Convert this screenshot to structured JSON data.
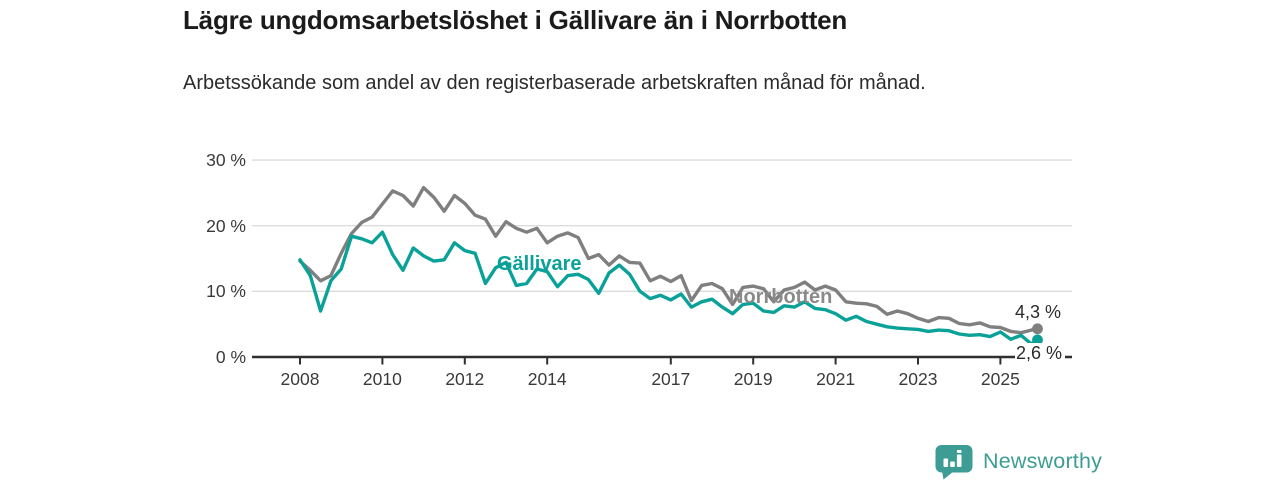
{
  "title": "Lägre ungdomsarbetslöshet i Gällivare än i Norrbotten",
  "subtitle": "Arbetssökande som andel av den registerbaserade arbetskraften månad för månad.",
  "branding": {
    "logo_text": "Newsworthy",
    "logo_icon": "newsworthy-bars-badge-icon",
    "logo_color": "#3d9d94"
  },
  "colors": {
    "axis": "#2f2f2f",
    "grid": "#dcdcdc",
    "tick_label": "#3a3a3a",
    "background": "#ffffff"
  },
  "chart_data": {
    "type": "line",
    "title": "Lägre ungdomsarbetslöshet i Gällivare än i Norrbotten",
    "subtitle": "Arbetssökande som andel av den registerbaserade arbetskraften månad för månad.",
    "xlabel": "",
    "ylabel": "",
    "grid": "horizontal",
    "legend_position": "inline-labels",
    "xlim": [
      2008,
      2026.7
    ],
    "ylim": [
      0,
      31
    ],
    "x_ticks": [
      2008,
      2010,
      2012,
      2014,
      2017,
      2019,
      2021,
      2023,
      2025
    ],
    "x_tick_labels": [
      "2008",
      "2010",
      "2012",
      "2014",
      "2017",
      "2019",
      "2021",
      "2023",
      "2025"
    ],
    "y_ticks": [
      0,
      10,
      20,
      30
    ],
    "y_tick_labels": [
      "0 %",
      "10 %",
      "20 %",
      "30 %"
    ],
    "x_unit": "decimal year (monthly data)",
    "y_unit": "percent of registered labour force",
    "x": [
      2008.0,
      2008.25,
      2008.5,
      2008.75,
      2009.0,
      2009.25,
      2009.5,
      2009.75,
      2010.0,
      2010.25,
      2010.5,
      2010.75,
      2011.0,
      2011.25,
      2011.5,
      2011.75,
      2012.0,
      2012.25,
      2012.5,
      2012.75,
      2013.0,
      2013.25,
      2013.5,
      2013.75,
      2014.0,
      2014.25,
      2014.5,
      2014.75,
      2015.0,
      2015.25,
      2015.5,
      2015.75,
      2016.0,
      2016.25,
      2016.5,
      2016.75,
      2017.0,
      2017.25,
      2017.5,
      2017.75,
      2018.0,
      2018.25,
      2018.5,
      2018.75,
      2019.0,
      2019.25,
      2019.5,
      2019.75,
      2020.0,
      2020.25,
      2020.5,
      2020.75,
      2021.0,
      2021.25,
      2021.5,
      2021.75,
      2022.0,
      2022.25,
      2022.5,
      2022.75,
      2023.0,
      2023.25,
      2023.5,
      2023.75,
      2024.0,
      2024.25,
      2024.5,
      2024.75,
      2025.0,
      2025.25,
      2025.5,
      2025.75,
      2025.9
    ],
    "series": [
      {
        "name": "Norrbotten",
        "color": "#7f7f7f",
        "end_label": "4,3 %",
        "end_value": 4.3,
        "values": [
          14.6,
          13.2,
          11.6,
          12.4,
          15.8,
          18.8,
          20.5,
          21.3,
          23.3,
          25.3,
          24.6,
          23.0,
          25.8,
          24.3,
          22.2,
          24.6,
          23.4,
          21.6,
          21.0,
          18.4,
          20.6,
          19.6,
          19.0,
          19.6,
          17.4,
          18.4,
          18.9,
          18.2,
          15.0,
          15.6,
          14.0,
          15.4,
          14.4,
          14.3,
          11.6,
          12.3,
          11.5,
          12.4,
          8.6,
          10.9,
          11.2,
          10.4,
          8.0,
          10.6,
          10.8,
          10.4,
          8.4,
          10.2,
          10.6,
          11.4,
          10.2,
          10.8,
          10.2,
          8.4,
          8.2,
          8.1,
          7.7,
          6.5,
          7.0,
          6.6,
          5.9,
          5.4,
          6.0,
          5.9,
          5.1,
          4.9,
          5.2,
          4.6,
          4.5,
          3.9,
          3.7,
          4.1,
          4.3
        ]
      },
      {
        "name": "Gällivare",
        "color": "#0aa198",
        "end_label": "2,6 %",
        "end_value": 2.6,
        "values": [
          14.8,
          12.4,
          7.0,
          11.6,
          13.4,
          18.4,
          18.0,
          17.4,
          19.0,
          15.6,
          13.2,
          16.6,
          15.4,
          14.6,
          14.8,
          17.4,
          16.2,
          15.8,
          11.2,
          13.6,
          14.4,
          10.9,
          11.2,
          13.4,
          13.0,
          10.7,
          12.4,
          12.6,
          11.8,
          9.7,
          12.8,
          14.0,
          12.6,
          10.0,
          8.9,
          9.4,
          8.7,
          9.6,
          7.6,
          8.4,
          8.8,
          7.6,
          6.6,
          8.0,
          8.2,
          7.0,
          6.8,
          7.8,
          7.6,
          8.4,
          7.4,
          7.2,
          6.6,
          5.6,
          6.2,
          5.4,
          5.0,
          4.6,
          4.4,
          4.3,
          4.2,
          3.9,
          4.1,
          4.0,
          3.5,
          3.3,
          3.4,
          3.1,
          3.8,
          2.7,
          3.3,
          2.0,
          2.6
        ]
      }
    ]
  }
}
